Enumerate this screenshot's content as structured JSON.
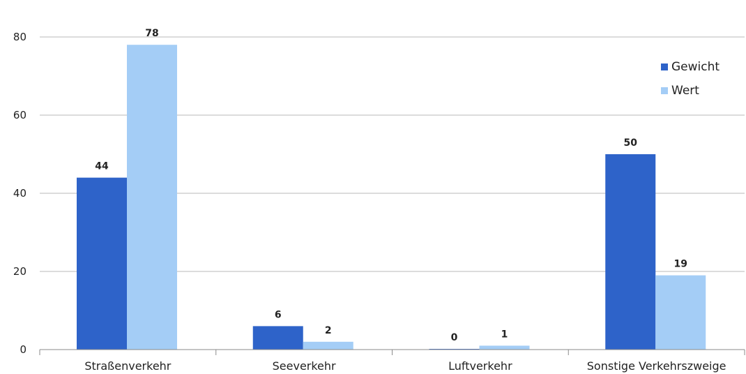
{
  "chart_data": {
    "type": "bar",
    "categories": [
      "Straßenverkehr",
      "Seeverkehr",
      "Luftverkehr",
      "Sonstige Verkehrszweige"
    ],
    "series": [
      {
        "name": "Gewicht",
        "values": [
          44,
          6,
          0,
          50
        ],
        "labels": [
          "44",
          "6",
          "0",
          "50"
        ],
        "color": "#2e63c9"
      },
      {
        "name": "Wert",
        "values": [
          78,
          2,
          1,
          19
        ],
        "labels": [
          "78",
          "2",
          "1",
          "19"
        ],
        "color": "#a4cdf6"
      }
    ],
    "title": "",
    "xlabel": "",
    "ylabel": "",
    "ylim": [
      0,
      80
    ],
    "yticks": [
      0,
      20,
      40,
      60,
      80
    ],
    "ytick_labels": [
      "0",
      "20",
      "40",
      "60",
      "80"
    ],
    "grid": true,
    "legend_position": "top-right"
  }
}
